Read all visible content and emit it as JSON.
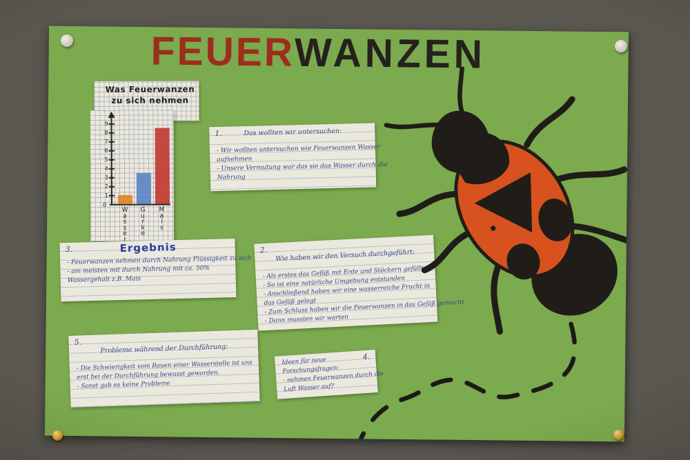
{
  "scene": {
    "wall_color": "#5a5750",
    "poster_color": "#7caa4e",
    "paper_color": "#ebe8de",
    "ink_color": "#36418a",
    "pin_top_color": "#d5d2c4",
    "pin_bottom_color": "#c08f2a"
  },
  "title": {
    "part1": "FEUER",
    "part2": "WANZEN",
    "part1_color": "#9c2e1e",
    "part2_color": "#24221d"
  },
  "chart_data": {
    "type": "bar",
    "title": "Was Feuerwanzen zu sich nehmen",
    "title_lines": [
      "Was Feuerwanzen",
      "zu sich nehmen"
    ],
    "categories": [
      "Wasser",
      "Gurke",
      "Mais"
    ],
    "values": [
      1,
      3.5,
      8.5
    ],
    "bar_colors": [
      "#e0832a",
      "#5b85c2",
      "#c23b31"
    ],
    "ylim": [
      0,
      10
    ],
    "yticks": [
      1,
      2,
      3,
      4,
      5,
      6,
      7,
      8,
      9
    ],
    "origin_label": "0",
    "grid": "graph-paper",
    "xlabel_orientation": "vertical",
    "legend": "none"
  },
  "notes": [
    {
      "number": "1.",
      "heading": "Das wollten wir untersuchen:",
      "lines": [
        "- Wir wollten untersuchen wie Feuerwanzen Wasser",
        "aufnehmen",
        "- Unsere Vermutung war das sie das Wasser durch die",
        "Nahrung"
      ]
    },
    {
      "number": "2.",
      "heading": "Wie haben wir den Versuch durchgeführt:",
      "lines": [
        "- Als erstes das Gefäß mit Erde und Stöckern gefüllt",
        "- So ist eine natürliche Umgebung entstanden",
        "- Anschließend haben wir eine wasserreiche Frucht in",
        "das Gefäß gelegt",
        "- Zum Schluss haben wir die Feuerwanzen in das Gefäß gemacht",
        "- Dann mussten wir warten"
      ]
    },
    {
      "number": "3.",
      "heading": "Ergebnis",
      "lines": [
        "- Feuerwanzen nehmen durch Nahrung Flüssigkeit zu sich",
        "- am meisten mit durch Nahrung mit ca. 50%",
        "Wassergehalt z.B. Mais"
      ]
    },
    {
      "number": "4.",
      "heading": "Ideen für neue Forschungsfragen:",
      "lines": [
        "- nehmen Feuerwanzen durch die",
        "Luft Wasser auf?"
      ]
    },
    {
      "number": "5.",
      "heading": "Probleme während der Durchführung:",
      "lines": [
        "- Die Schwierigkeit vom Bauen einer Wasserstelle ist uns",
        "erst bei der Durchführung bewusst geworden.",
        "- Sonst gab es keine Probleme"
      ]
    }
  ],
  "bug": {
    "label": "firebug-drawing",
    "body_color": "#d7521e",
    "marking_color": "#201d18"
  }
}
